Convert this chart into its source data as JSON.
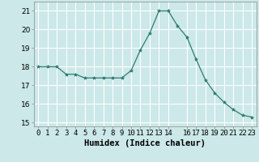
{
  "x": [
    0,
    1,
    2,
    3,
    4,
    5,
    6,
    7,
    8,
    9,
    10,
    11,
    12,
    13,
    14,
    15,
    16,
    17,
    18,
    19,
    20,
    21,
    22,
    23
  ],
  "y": [
    18.0,
    18.0,
    18.0,
    17.6,
    17.6,
    17.4,
    17.4,
    17.4,
    17.4,
    17.4,
    17.8,
    18.9,
    19.8,
    21.0,
    21.0,
    20.2,
    19.6,
    18.4,
    17.3,
    16.6,
    16.1,
    15.7,
    15.4,
    15.3
  ],
  "line_color": "#2e7d6e",
  "marker": "*",
  "marker_size": 3,
  "bg_color": "#cce8e8",
  "grid_color": "#ffffff",
  "xlabel": "Humidex (Indice chaleur)",
  "xlim": [
    -0.5,
    23.5
  ],
  "ylim": [
    14.8,
    21.5
  ],
  "yticks": [
    15,
    16,
    17,
    18,
    19,
    20,
    21
  ],
  "tick_fontsize": 6.5,
  "xlabel_fontsize": 7.5
}
